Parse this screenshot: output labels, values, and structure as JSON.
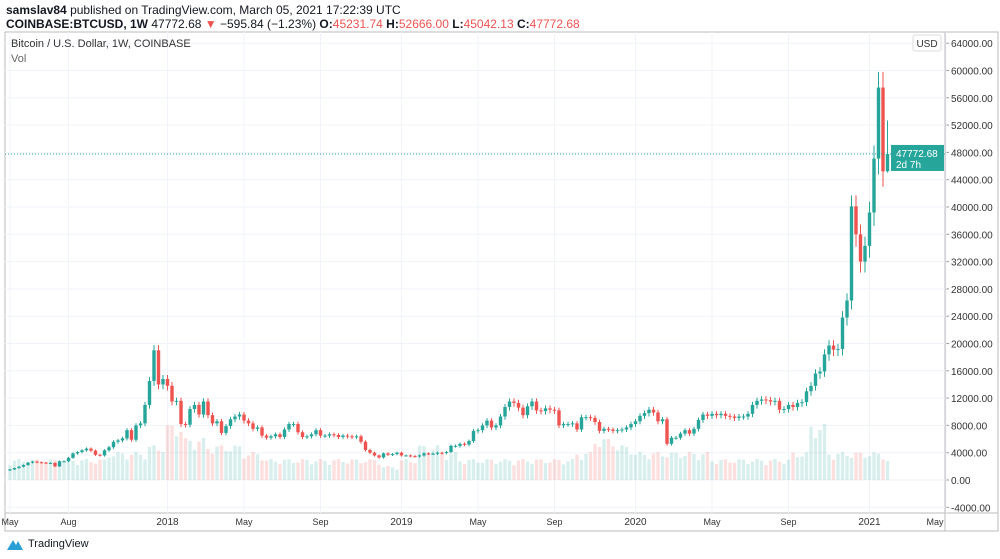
{
  "header": {
    "author": "samslav84",
    "published": "published on TradingView.com, March 05, 2021 17:22:39 UTC",
    "symbol": "COINBASE:BTCUSD, 1W",
    "last": "47772.68",
    "change": "−595.84 (−1.23%)",
    "o_label": "O:",
    "o": "45231.74",
    "h_label": "H:",
    "h": "52666.00",
    "l_label": "L:",
    "l": "45042.13",
    "c_label": "C:",
    "c": "47772.68"
  },
  "legend": {
    "title": "Bitcoin / U.S. Dollar, 1W, COINBASE",
    "vol": "Vol"
  },
  "footer": {
    "brand": "TradingView"
  },
  "colors": {
    "up": "#26a69a",
    "down": "#ef5350",
    "grid": "#f0f3fa",
    "last_price": "#26a69a"
  },
  "chart_data": {
    "type": "candlestick",
    "interval": "1W",
    "currency": "USD",
    "ylim": [
      -4000,
      64000
    ],
    "y_ticks": [
      "64000.00",
      "60000.00",
      "56000.00",
      "52000.00",
      "48000.00",
      "44000.00",
      "40000.00",
      "36000.00",
      "32000.00",
      "28000.00",
      "24000.00",
      "20000.00",
      "16000.00",
      "12000.00",
      "8000.00",
      "4000.00",
      "0.00",
      "-4000.00"
    ],
    "x_ticks": [
      {
        "label": "May",
        "week": 0
      },
      {
        "label": "Aug",
        "week": 13
      },
      {
        "label": "2018",
        "week": 35
      },
      {
        "label": "May",
        "week": 52
      },
      {
        "label": "Sep",
        "week": 69
      },
      {
        "label": "2019",
        "week": 87
      },
      {
        "label": "May",
        "week": 104
      },
      {
        "label": "Sep",
        "week": 121
      },
      {
        "label": "2020",
        "week": 139
      },
      {
        "label": "May",
        "week": 156
      },
      {
        "label": "Sep",
        "week": 173
      },
      {
        "label": "2021",
        "week": 191
      },
      {
        "label": "May",
        "week": 208
      }
    ],
    "first_open": 1400,
    "weekly_close": [
      1550,
      1750,
      1950,
      2200,
      2550,
      2700,
      2600,
      2550,
      2500,
      2500,
      2000,
      2750,
      2750,
      3250,
      3900,
      4100,
      4350,
      4600,
      4300,
      3700,
      3600,
      4350,
      4800,
      5600,
      5800,
      6100,
      7300,
      5900,
      8000,
      8300,
      11000,
      14500,
      19000,
      14000,
      14800,
      13800,
      11500,
      11600,
      8200,
      8100,
      10400,
      11000,
      9600,
      11500,
      9500,
      8300,
      8600,
      6900,
      7900,
      8900,
      9300,
      9600,
      8700,
      8300,
      7500,
      7700,
      6500,
      6200,
      6400,
      6700,
      6300,
      7400,
      8200,
      8200,
      7000,
      6300,
      6400,
      6700,
      7300,
      6500,
      6500,
      6700,
      6600,
      6300,
      6500,
      6400,
      6300,
      6400,
      5600,
      4400,
      4000,
      3600,
      3300,
      3900,
      3700,
      3800,
      4000,
      3600,
      3600,
      3500,
      3450,
      3600,
      3900,
      3850,
      3850,
      4000,
      3950,
      4100,
      5000,
      5000,
      5300,
      5200,
      5700,
      7200,
      7300,
      8000,
      8700,
      7700,
      8000,
      9300,
      10700,
      11500,
      11300,
      10600,
      9500,
      10800,
      11500,
      10200,
      10100,
      10500,
      10300,
      10200,
      8000,
      8200,
      8200,
      8300,
      7400,
      9200,
      9200,
      9100,
      8500,
      7200,
      7500,
      7400,
      7200,
      7300,
      7400,
      7700,
      8200,
      8600,
      9400,
      9800,
      10300,
      9900,
      8600,
      8900,
      5300,
      6200,
      6200,
      6800,
      7300,
      6800,
      7500,
      8800,
      9600,
      9400,
      9700,
      9500,
      9700,
      9400,
      9300,
      9100,
      9300,
      9300,
      9700,
      11000,
      11600,
      11800,
      11700,
      11500,
      11600,
      10300,
      10400,
      11000,
      10700,
      11300,
      11400,
      13000,
      13800,
      15600,
      15900,
      18400,
      19700,
      19100,
      19200,
      23800,
      26300,
      40100,
      36000,
      32000,
      34300,
      39200,
      47100,
      57500,
      45231.74,
      47772.68
    ],
    "last_candle": {
      "open": 45231.74,
      "high": 52666.0,
      "low": 45042.13,
      "close": 47772.68
    },
    "monthly_volume_relative": [
      3,
      3,
      3,
      3,
      3,
      4,
      4,
      5,
      8,
      6,
      5,
      5,
      4,
      3,
      3,
      3,
      3,
      3,
      3,
      2,
      3,
      5,
      4,
      3,
      3,
      3,
      3,
      3,
      3,
      4,
      6,
      5,
      4,
      4,
      4,
      4,
      3,
      3,
      3,
      3,
      4,
      8,
      4,
      4,
      4,
      3,
      3,
      3,
      3,
      4,
      4,
      5,
      6,
      6,
      5,
      7,
      9,
      8,
      5
    ],
    "last_price_label": "47772.68",
    "countdown": "2d 7h"
  }
}
